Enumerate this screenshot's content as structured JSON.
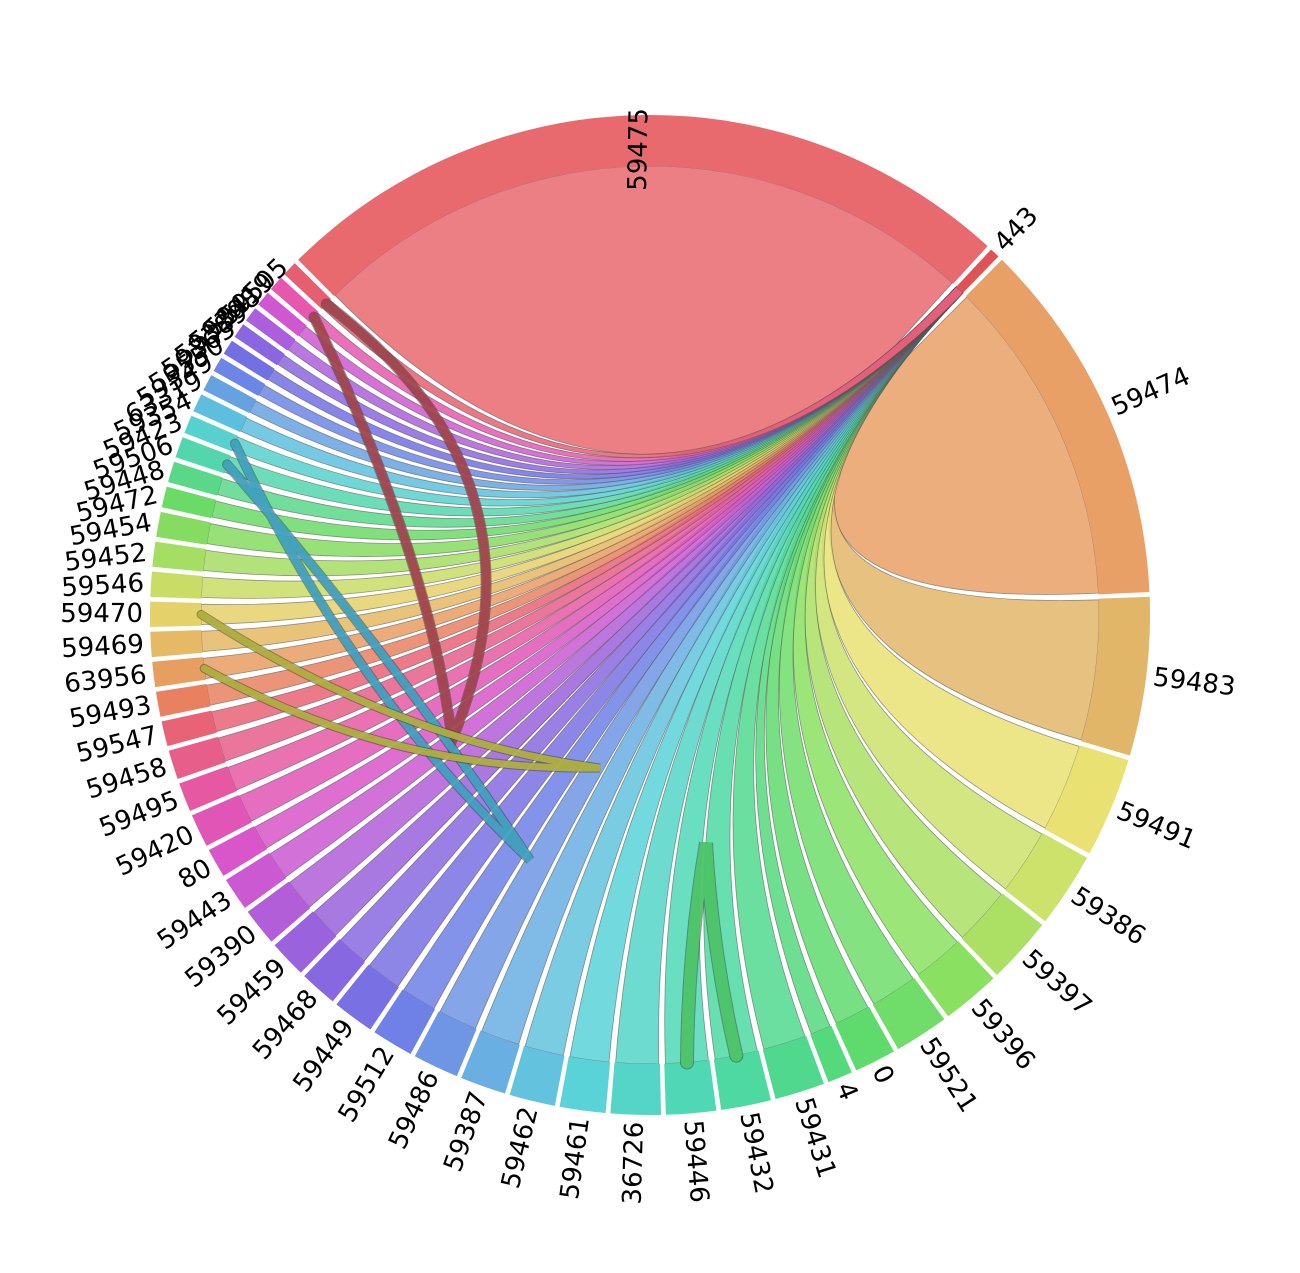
{
  "chart_data": {
    "type": "chord",
    "title": "",
    "description": "Circular chord diagram of network ports; every port node has a ribbon converging on the small hub arc labeled 443, plus a few hairpin loops between neighboring ports.",
    "hub": "443",
    "nodes": [
      {
        "label": "59475",
        "size": 90,
        "color": "#e8696e"
      },
      {
        "label": "443",
        "size": 1.2,
        "color": "#df5356"
      },
      {
        "label": "59474",
        "size": 44,
        "color": "#e9a066"
      },
      {
        "label": "59483",
        "size": 19,
        "color": "#e2b669"
      },
      {
        "label": "59491",
        "size": 12,
        "color": "#e9e273"
      },
      {
        "label": "59386",
        "size": 9,
        "color": "#cde26b"
      },
      {
        "label": "59397",
        "size": 8,
        "color": "#abe064"
      },
      {
        "label": "59396",
        "size": 7,
        "color": "#8ae161"
      },
      {
        "label": "59521",
        "size": 6.5,
        "color": "#70dd6a"
      },
      {
        "label": "0",
        "size": 5,
        "color": "#5fdb6e"
      },
      {
        "label": "4",
        "size": 3,
        "color": "#55d97d"
      },
      {
        "label": "59431",
        "size": 6,
        "color": "#50d98e"
      },
      {
        "label": "59432",
        "size": 6,
        "color": "#4ed9a2"
      },
      {
        "label": "59446",
        "size": 6,
        "color": "#50d8b6"
      },
      {
        "label": "36726",
        "size": 6,
        "color": "#54d5c8"
      },
      {
        "label": "59461",
        "size": 5.5,
        "color": "#59d2d8"
      },
      {
        "label": "59462",
        "size": 5.5,
        "color": "#63c3de"
      },
      {
        "label": "59387",
        "size": 5.5,
        "color": "#69afe2"
      },
      {
        "label": "59486",
        "size": 5.5,
        "color": "#6e96e5"
      },
      {
        "label": "59512",
        "size": 5,
        "color": "#6f80e6"
      },
      {
        "label": "59449",
        "size": 5,
        "color": "#7971e3"
      },
      {
        "label": "59468",
        "size": 4.5,
        "color": "#8868e0"
      },
      {
        "label": "59459",
        "size": 4.5,
        "color": "#9a62dd"
      },
      {
        "label": "59390",
        "size": 4.5,
        "color": "#b25ed8"
      },
      {
        "label": "59443",
        "size": 4,
        "color": "#ca59d2"
      },
      {
        "label": "80",
        "size": 3.5,
        "color": "#d856c9"
      },
      {
        "label": "59420",
        "size": 4,
        "color": "#e055b6"
      },
      {
        "label": "59495",
        "size": 3.5,
        "color": "#e659a2"
      },
      {
        "label": "59458",
        "size": 3.5,
        "color": "#e85e8b"
      },
      {
        "label": "59547",
        "size": 3,
        "color": "#e96377"
      },
      {
        "label": "59493",
        "size": 3,
        "color": "#e98160"
      },
      {
        "label": "63956",
        "size": 3,
        "color": "#e79e61"
      },
      {
        "label": "59469",
        "size": 3,
        "color": "#e6b964"
      },
      {
        "label": "59470",
        "size": 3,
        "color": "#e5d169"
      },
      {
        "label": "59546",
        "size": 3,
        "color": "#c9dd66"
      },
      {
        "label": "59452",
        "size": 3,
        "color": "#a6dd63"
      },
      {
        "label": "59454",
        "size": 3,
        "color": "#85dc60"
      },
      {
        "label": "59472",
        "size": 2.5,
        "color": "#6adb66"
      },
      {
        "label": "59448",
        "size": 2.5,
        "color": "#59d889"
      },
      {
        "label": "59506",
        "size": 2.5,
        "color": "#54d6ad"
      },
      {
        "label": "59423",
        "size": 2.2,
        "color": "#56d1cd"
      },
      {
        "label": "59354",
        "size": 2.2,
        "color": "#5dbfdd"
      },
      {
        "label": "63319",
        "size": 2,
        "color": "#66a2e1"
      },
      {
        "label": "59549",
        "size": 1.8,
        "color": "#6c86e5"
      },
      {
        "label": "59550",
        "size": 1.8,
        "color": "#7270e3"
      },
      {
        "label": "59363",
        "size": 1.8,
        "color": "#8a66e0"
      },
      {
        "label": "59389",
        "size": 1.8,
        "color": "#ab5fdc"
      },
      {
        "label": "59398",
        "size": 1.8,
        "color": "#cf58d0"
      },
      {
        "label": "59419",
        "size": 1.8,
        "color": "#e757ae"
      },
      {
        "label": "59505",
        "size": 1.8,
        "color": "#e65f70"
      }
    ],
    "links": [
      {
        "source": "59475",
        "target": "443"
      },
      {
        "source": "59474",
        "target": "443"
      },
      {
        "source": "59483",
        "target": "443"
      },
      {
        "source": "59491",
        "target": "443"
      },
      {
        "source": "59386",
        "target": "443"
      },
      {
        "source": "59397",
        "target": "443"
      },
      {
        "source": "59396",
        "target": "443"
      },
      {
        "source": "59521",
        "target": "443"
      },
      {
        "source": "0",
        "target": "443"
      },
      {
        "source": "4",
        "target": "443"
      },
      {
        "source": "59431",
        "target": "443"
      },
      {
        "source": "59432",
        "target": "443"
      },
      {
        "source": "59446",
        "target": "443"
      },
      {
        "source": "36726",
        "target": "443"
      },
      {
        "source": "59461",
        "target": "443"
      },
      {
        "source": "59462",
        "target": "443"
      },
      {
        "source": "59387",
        "target": "443"
      },
      {
        "source": "59486",
        "target": "443"
      },
      {
        "source": "59512",
        "target": "443"
      },
      {
        "source": "59449",
        "target": "443"
      },
      {
        "source": "59468",
        "target": "443"
      },
      {
        "source": "59459",
        "target": "443"
      },
      {
        "source": "59390",
        "target": "443"
      },
      {
        "source": "59443",
        "target": "443"
      },
      {
        "source": "80",
        "target": "443"
      },
      {
        "source": "59420",
        "target": "443"
      },
      {
        "source": "59495",
        "target": "443"
      },
      {
        "source": "59458",
        "target": "443"
      },
      {
        "source": "59547",
        "target": "443"
      },
      {
        "source": "59493",
        "target": "443"
      },
      {
        "source": "63956",
        "target": "443"
      },
      {
        "source": "59469",
        "target": "443"
      },
      {
        "source": "59470",
        "target": "443"
      },
      {
        "source": "59546",
        "target": "443"
      },
      {
        "source": "59452",
        "target": "443"
      },
      {
        "source": "59454",
        "target": "443"
      },
      {
        "source": "59472",
        "target": "443"
      },
      {
        "source": "59448",
        "target": "443"
      },
      {
        "source": "59506",
        "target": "443"
      },
      {
        "source": "59423",
        "target": "443"
      },
      {
        "source": "59354",
        "target": "443"
      },
      {
        "source": "63319",
        "target": "443"
      },
      {
        "source": "59549",
        "target": "443"
      },
      {
        "source": "59550",
        "target": "443"
      },
      {
        "source": "59363",
        "target": "443"
      },
      {
        "source": "59389",
        "target": "443"
      },
      {
        "source": "59398",
        "target": "443"
      },
      {
        "source": "59419",
        "target": "443"
      },
      {
        "source": "59505",
        "target": "443"
      }
    ],
    "loops": [
      {
        "a": "59505",
        "b": "59419",
        "color": "#a5454f",
        "width": 9,
        "dip": [
          452,
          740
        ],
        "c1": [
          560,
          480
        ],
        "c2": [
          430,
          560
        ]
      },
      {
        "a": "59506",
        "b": "59423",
        "color": "#3fa5c5",
        "width": 8,
        "dip": [
          530,
          860
        ],
        "c1": [
          385,
          645
        ],
        "c2": [
          350,
          690
        ]
      },
      {
        "a": "63956",
        "b": "59470",
        "color": "#b4b43e",
        "width": 7,
        "dip": [
          600,
          768
        ],
        "c1": [
          390,
          772
        ],
        "c2": [
          400,
          742
        ]
      },
      {
        "a": "59432",
        "b": "59446",
        "color": "#4ecb6b",
        "width": 12,
        "dip": [
          706,
          843
        ],
        "c1": [
          712,
          950
        ],
        "c2": [
          688,
          950
        ]
      }
    ],
    "layout": {
      "center": [
        650,
        615
      ],
      "outer_radius": 500,
      "inner_radius": 449,
      "label_radius": 507,
      "start_angle_deg": 315,
      "gap_deg": 0.55,
      "background": "#ffffff",
      "label_color": "#000000",
      "ribbon_opacity": 0.85,
      "ribbon_stroke": "#555555"
    }
  }
}
